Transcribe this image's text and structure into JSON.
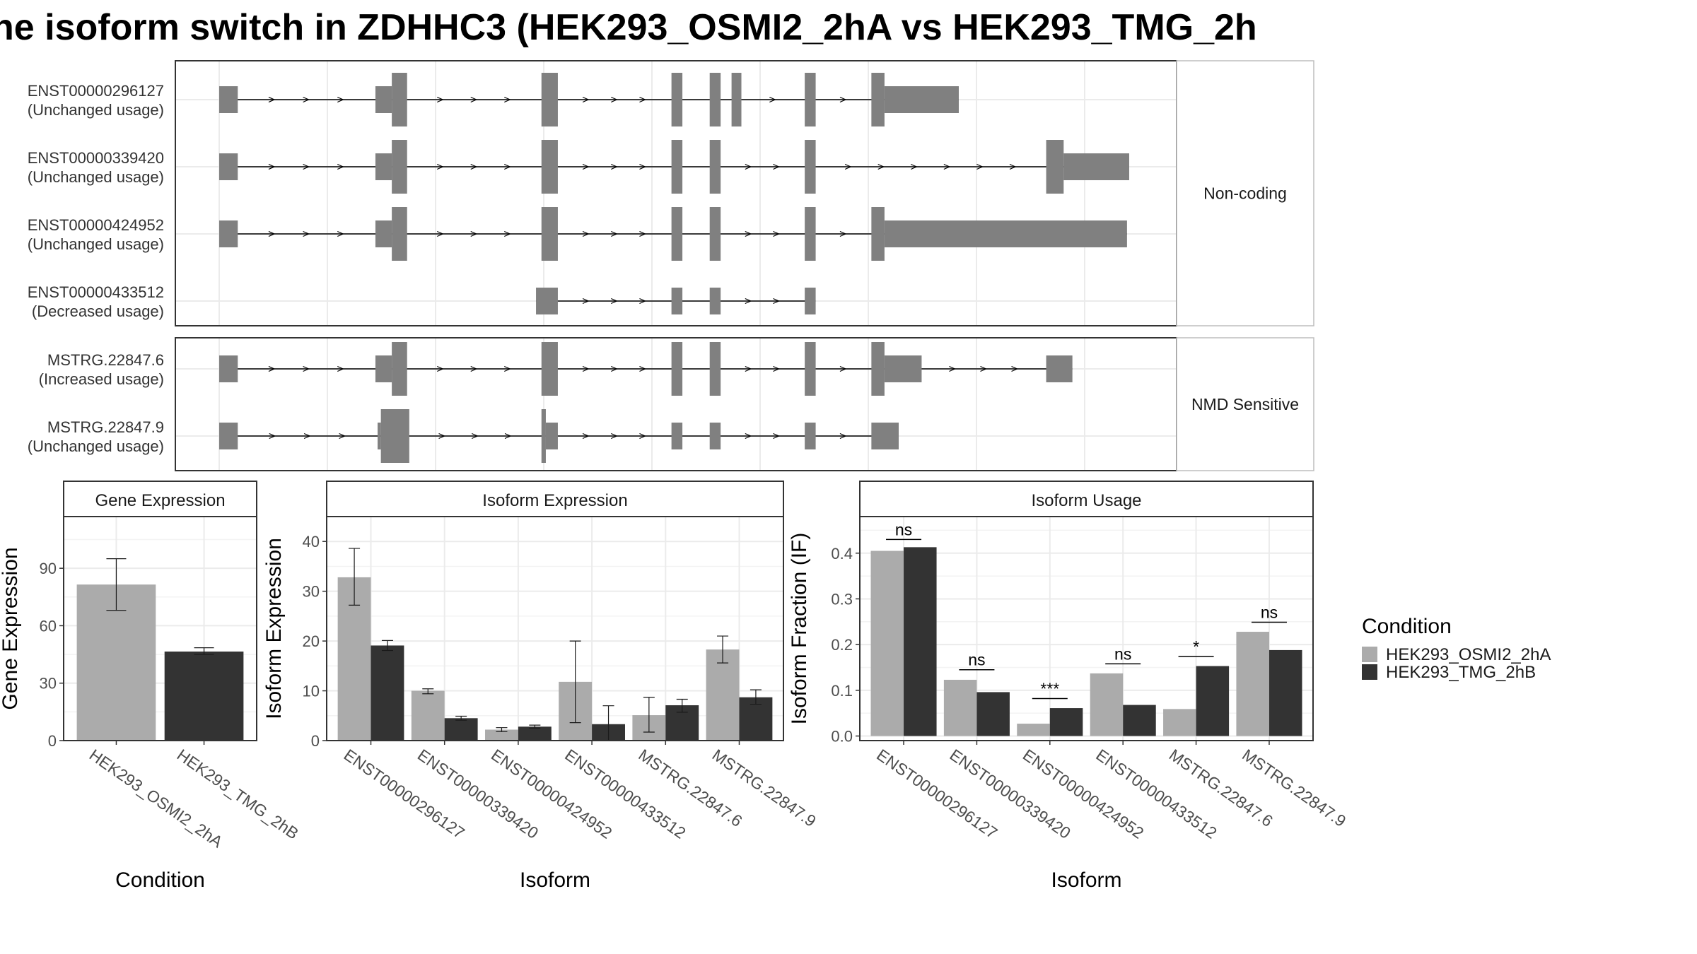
{
  "title": "ne isoform switch in ZDHHC3 (HEK293_OSMI2_2hA vs HEK293_TMG_2h",
  "colors": {
    "exon": "#808080",
    "light": "#ABABAB",
    "dark": "#333333",
    "grid": "#EBEBEB",
    "border": "#333333"
  },
  "transcripts": {
    "groups": [
      {
        "label": "Non-coding",
        "tracks": [
          {
            "id": "ENST00000296127",
            "usage": "(Unchanged usage)",
            "exons": [
              [
                0,
                17,
                "t"
              ],
              [
                143,
                158,
                "t"
              ],
              [
                158,
                172,
                "c"
              ],
              [
                295,
                310,
                "c"
              ],
              [
                414,
                424,
                "c"
              ],
              [
                449,
                459,
                "c"
              ],
              [
                469,
                478,
                "c"
              ],
              [
                536,
                546,
                "c"
              ],
              [
                597,
                609,
                "c"
              ],
              [
                609,
                677,
                "t"
              ]
            ]
          },
          {
            "id": "ENST00000339420",
            "usage": "(Unchanged usage)",
            "exons": [
              [
                0,
                17,
                "t"
              ],
              [
                143,
                158,
                "t"
              ],
              [
                158,
                172,
                "c"
              ],
              [
                295,
                310,
                "c"
              ],
              [
                414,
                424,
                "c"
              ],
              [
                449,
                459,
                "c"
              ],
              [
                536,
                546,
                "c"
              ],
              [
                757,
                773,
                "c"
              ],
              [
                773,
                833,
                "t"
              ]
            ]
          },
          {
            "id": "ENST00000424952",
            "usage": "(Unchanged usage)",
            "exons": [
              [
                0,
                17,
                "t"
              ],
              [
                143,
                158,
                "t"
              ],
              [
                158,
                172,
                "c"
              ],
              [
                295,
                310,
                "c"
              ],
              [
                414,
                424,
                "c"
              ],
              [
                449,
                459,
                "c"
              ],
              [
                536,
                546,
                "c"
              ],
              [
                597,
                609,
                "c"
              ],
              [
                609,
                831,
                "t"
              ]
            ]
          },
          {
            "id": "ENST00000433512",
            "usage": "(Decreased usage)",
            "exons": [
              [
                290,
                310,
                "t"
              ],
              [
                414,
                424,
                "t"
              ],
              [
                449,
                459,
                "t"
              ],
              [
                536,
                546,
                "t"
              ]
            ]
          }
        ]
      },
      {
        "label": "NMD Sensitive",
        "tracks": [
          {
            "id": "MSTRG.22847.6",
            "usage": "(Increased usage)",
            "exons": [
              [
                0,
                17,
                "t"
              ],
              [
                143,
                158,
                "t"
              ],
              [
                158,
                172,
                "c"
              ],
              [
                295,
                310,
                "c"
              ],
              [
                414,
                424,
                "c"
              ],
              [
                449,
                459,
                "c"
              ],
              [
                536,
                546,
                "c"
              ],
              [
                597,
                609,
                "c"
              ],
              [
                609,
                643,
                "t"
              ],
              [
                757,
                781,
                "t"
              ]
            ]
          },
          {
            "id": "MSTRG.22847.9",
            "usage": "(Unchanged usage)",
            "exons": [
              [
                0,
                17,
                "t"
              ],
              [
                145,
                148,
                "t"
              ],
              [
                148,
                174,
                "c"
              ],
              [
                295,
                299,
                "c"
              ],
              [
                299,
                310,
                "t"
              ],
              [
                414,
                424,
                "t"
              ],
              [
                449,
                459,
                "t"
              ],
              [
                536,
                546,
                "t"
              ],
              [
                597,
                622,
                "t"
              ]
            ]
          }
        ]
      }
    ]
  },
  "chart_data": [
    {
      "type": "bar",
      "title": "Gene Expression",
      "xlabel": "Condition",
      "ylabel": "Gene Expression",
      "ylim": [
        0,
        117
      ],
      "yticks": [
        0,
        30,
        60,
        90
      ],
      "categories": [
        "HEK293_OSMI2_2hA",
        "HEK293_TMG_2hB"
      ],
      "values": [
        81.5,
        46.5
      ],
      "errors": [
        [
          68,
          95
        ],
        [
          45,
          48.5
        ]
      ]
    },
    {
      "type": "bar",
      "title": "Isoform Expression",
      "xlabel": "Isoform",
      "ylabel": "Isoform Expression",
      "ylim": [
        0,
        45
      ],
      "yticks": [
        0,
        10,
        20,
        30,
        40
      ],
      "categories": [
        "ENST00000296127",
        "ENST00000339420",
        "ENST00000424952",
        "ENST00000433512",
        "MSTRG.22847.6",
        "MSTRG.22847.9"
      ],
      "series": [
        {
          "name": "HEK293_OSMI2_2hA",
          "values": [
            32.8,
            10,
            2.2,
            11.8,
            5.1,
            18.3
          ],
          "errors": [
            [
              27.2,
              38.6
            ],
            [
              9.4,
              10.4
            ],
            [
              1.8,
              2.6
            ],
            [
              3.6,
              20
            ],
            [
              1.7,
              8.7
            ],
            [
              15.6,
              21
            ]
          ]
        },
        {
          "name": "HEK293_TMG_2hB",
          "values": [
            19.1,
            4.5,
            2.8,
            3.3,
            7.1,
            8.7
          ],
          "errors": [
            [
              18.1,
              20.1
            ],
            [
              4.1,
              4.9
            ],
            [
              2.5,
              3.1
            ],
            [
              0,
              7
            ],
            [
              5.7,
              8.3
            ],
            [
              7.3,
              10.2
            ]
          ]
        }
      ]
    },
    {
      "type": "bar",
      "title": "Isoform Usage",
      "xlabel": "Isoform",
      "ylabel": "Isoform Fraction (IF)",
      "ylim": [
        -0.01,
        0.48
      ],
      "yticks": [
        0.0,
        0.1,
        0.2,
        0.3,
        0.4
      ],
      "yticklabels": [
        "0.0",
        "0.1",
        "0.2",
        "0.3",
        "0.4"
      ],
      "categories": [
        "ENST00000296127",
        "ENST00000339420",
        "ENST00000424952",
        "ENST00000433512",
        "MSTRG.22847.6",
        "MSTRG.22847.9"
      ],
      "series": [
        {
          "name": "HEK293_OSMI2_2hA",
          "values": [
            0.405,
            0.123,
            0.027,
            0.137,
            0.059,
            0.228
          ]
        },
        {
          "name": "HEK293_TMG_2hB",
          "values": [
            0.413,
            0.096,
            0.061,
            0.068,
            0.153,
            0.188
          ]
        }
      ],
      "annotations": [
        {
          "category": 0,
          "text": "ns",
          "y": 0.43
        },
        {
          "category": 1,
          "text": "ns",
          "y": 0.145
        },
        {
          "category": 2,
          "text": "***",
          "y": 0.082
        },
        {
          "category": 3,
          "text": "ns",
          "y": 0.158
        },
        {
          "category": 4,
          "text": "*",
          "y": 0.174
        },
        {
          "category": 5,
          "text": "ns",
          "y": 0.249
        }
      ]
    }
  ],
  "legend": {
    "title": "Condition",
    "items": [
      {
        "label": "HEK293_OSMI2_2hA",
        "color": "#ABABAB"
      },
      {
        "label": "HEK293_TMG_2hB",
        "color": "#333333"
      }
    ]
  }
}
